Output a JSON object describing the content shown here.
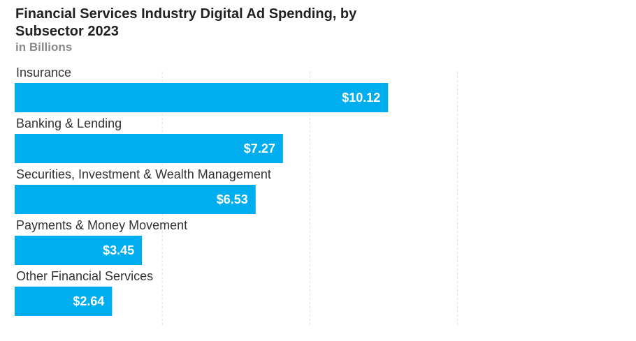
{
  "header": {
    "title": "Financial Services Industry Digital Ad Spending, by Subsector 2023",
    "subtitle": "in Billions"
  },
  "chart_data": {
    "type": "bar",
    "orientation": "horizontal",
    "title": "Financial Services Industry Digital Ad Spending, by Subsector 2023",
    "subtitle": "in Billions",
    "categories": [
      "Insurance",
      "Banking & Lending",
      "Securities, Investment & Wealth Management",
      "Payments & Money Movement",
      "Other Financial Services"
    ],
    "values": [
      10.12,
      7.27,
      6.53,
      3.45,
      2.64
    ],
    "value_labels": [
      "$10.12",
      "$7.27",
      "$6.53",
      "$3.45",
      "$2.64"
    ],
    "xlim": [
      0,
      16
    ],
    "grid": true,
    "legend": "none",
    "bar_color": "#00AEEF",
    "grid_color": "#dddddd"
  }
}
